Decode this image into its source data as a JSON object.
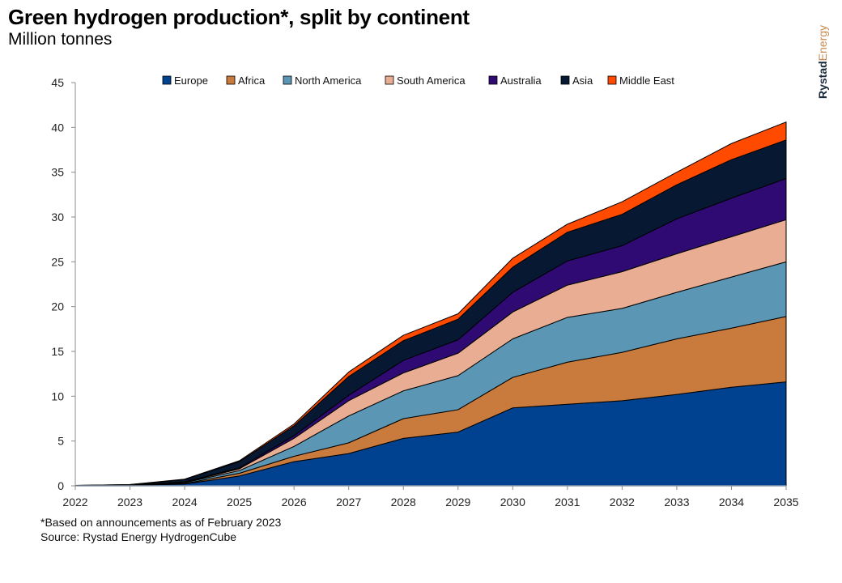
{
  "header": {
    "title": "Green hydrogen production*, split by continent",
    "subtitle": "Million tonnes"
  },
  "brand": {
    "part1": "Rystad",
    "part2": "Energy"
  },
  "footnotes": {
    "note": "*Based on announcements as of February 2023",
    "source": "Source: Rystad Energy HydrogenCube"
  },
  "chart_data": {
    "type": "area",
    "stacked": true,
    "title": "Green hydrogen production*, split by continent",
    "subtitle": "Million tonnes",
    "xlabel": "",
    "ylabel": "Million tonnes",
    "ylim": [
      0,
      45
    ],
    "yticks": [
      0,
      5,
      10,
      15,
      20,
      25,
      30,
      35,
      40,
      45
    ],
    "x": [
      "2022",
      "2023",
      "2024",
      "2025",
      "2026",
      "2027",
      "2028",
      "2029",
      "2030",
      "2031",
      "2032",
      "2033",
      "2034",
      "2035"
    ],
    "legend_position": "top",
    "grid": false,
    "series": [
      {
        "name": "Europe",
        "color": "#00428F",
        "values": [
          0.02,
          0.05,
          0.2,
          1.1,
          2.7,
          3.6,
          5.3,
          6.0,
          8.7,
          9.1,
          9.5,
          10.2,
          11.0,
          11.6
        ]
      },
      {
        "name": "Africa",
        "color": "#C97A3D",
        "values": [
          0.0,
          0.01,
          0.05,
          0.3,
          0.6,
          1.2,
          2.2,
          2.5,
          3.4,
          4.7,
          5.4,
          6.2,
          6.6,
          7.3
        ]
      },
      {
        "name": "North America",
        "color": "#5B97B5",
        "values": [
          0.0,
          0.01,
          0.1,
          0.3,
          1.1,
          3.0,
          3.1,
          3.8,
          4.3,
          5.0,
          4.9,
          5.2,
          5.7,
          6.1
        ]
      },
      {
        "name": "South America",
        "color": "#E8AD92",
        "values": [
          0.0,
          0.01,
          0.05,
          0.2,
          0.9,
          1.7,
          2.0,
          2.5,
          3.0,
          3.6,
          4.1,
          4.3,
          4.5,
          4.7
        ]
      },
      {
        "name": "Australia",
        "color": "#2E0A72",
        "values": [
          0.0,
          0.01,
          0.05,
          0.1,
          0.3,
          0.6,
          1.4,
          1.5,
          2.2,
          2.7,
          2.9,
          3.9,
          4.3,
          4.6
        ]
      },
      {
        "name": "Asia",
        "color": "#061832",
        "values": [
          0.02,
          0.05,
          0.25,
          0.7,
          1.1,
          2.1,
          2.2,
          2.3,
          2.8,
          3.2,
          3.5,
          3.8,
          4.3,
          4.3
        ]
      },
      {
        "name": "Middle East",
        "color": "#FF4A00",
        "values": [
          0.0,
          0.01,
          0.05,
          0.1,
          0.2,
          0.5,
          0.6,
          0.6,
          1.0,
          0.9,
          1.4,
          1.4,
          1.8,
          2.0
        ]
      }
    ]
  }
}
